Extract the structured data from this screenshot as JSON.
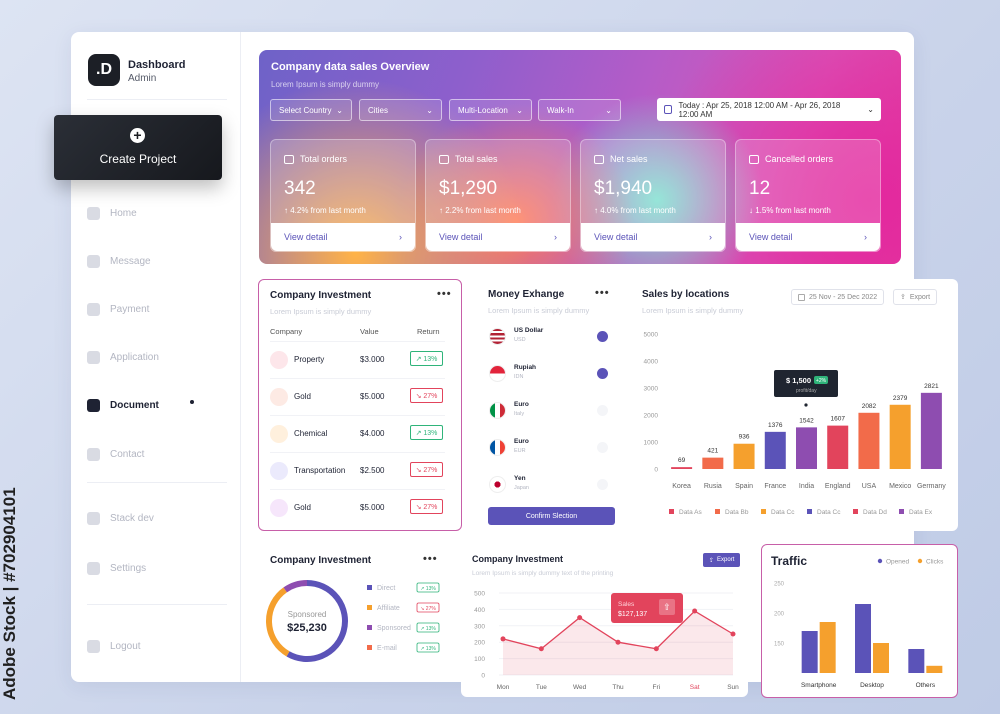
{
  "watermark": {
    "text": "Adobe Stock | #702904101"
  },
  "sidebar": {
    "logo": ".D",
    "title": "Dashboard",
    "subtitle": "Admin",
    "create_label": "Create Project",
    "items": [
      {
        "label": "Home",
        "icon": "home-icon"
      },
      {
        "label": "Message",
        "icon": "message-icon"
      },
      {
        "label": "Payment",
        "icon": "payment-icon"
      },
      {
        "label": "Application",
        "icon": "application-icon"
      },
      {
        "label": "Document",
        "icon": "document-icon",
        "active": true
      },
      {
        "label": "Contact",
        "icon": "contact-icon"
      },
      {
        "label": "Stack dev",
        "icon": "stack-icon"
      },
      {
        "label": "Settings",
        "icon": "settings-icon"
      },
      {
        "label": "Logout",
        "icon": "logout-icon"
      }
    ]
  },
  "hero": {
    "title": "Company data sales Overview",
    "subtitle": "Lorem Ipsum is simply dummy",
    "filters": [
      "Select Country",
      "Cities",
      "Multi-Location",
      "Walk-In"
    ],
    "date_range": "Today : Apr 25, 2018 12:00 AM - Apr 26, 2018 12:00 AM",
    "stats": [
      {
        "label": "Total orders",
        "value": "342",
        "change": "↑ 4.2%  from last month",
        "link": "View detail"
      },
      {
        "label": "Total sales",
        "value": "$1,290",
        "change": "↑ 2.2%  from last month",
        "link": "View detail"
      },
      {
        "label": "Net sales",
        "value": "$1,940",
        "change": "↑ 4.0%  from last month",
        "link": "View detail"
      },
      {
        "label": "Cancelled orders",
        "value": "12",
        "change": "↓ 1.5%  from last month",
        "link": "View detail"
      }
    ]
  },
  "investment": {
    "title": "Company Investment",
    "subtitle": "Lorem Ipsum is simply dummy",
    "menu": "•••",
    "headers": [
      "Company",
      "Value",
      "Return"
    ],
    "rows": [
      {
        "name": "Property",
        "value": "$3.000",
        "ret": "↗ 13%",
        "dir": "up",
        "color": "#fde6ea"
      },
      {
        "name": "Gold",
        "value": "$5.000",
        "ret": "↘ 27%",
        "dir": "down",
        "color": "#fdeae4"
      },
      {
        "name": "Chemical",
        "value": "$4.000",
        "ret": "↗ 13%",
        "dir": "up",
        "color": "#fff0dd"
      },
      {
        "name": "Transportation",
        "value": "$2.500",
        "ret": "↘ 27%",
        "dir": "down",
        "color": "#ebeafc"
      },
      {
        "name": "Gold",
        "value": "$5.000",
        "ret": "↘ 27%",
        "dir": "down",
        "color": "#f6e6fb"
      }
    ]
  },
  "exchange": {
    "title": "Money Exhange",
    "subtitle": "Lorem Ipsum is simply dummy",
    "menu": "•••",
    "rows": [
      {
        "name": "US Dollar",
        "code": "USD",
        "checked": true
      },
      {
        "name": "Rupiah",
        "code": "IDN",
        "checked": true
      },
      {
        "name": "Euro",
        "code": "Italy",
        "checked": false
      },
      {
        "name": "Euro",
        "code": "EUR",
        "checked": false
      },
      {
        "name": "Yen",
        "code": "Japan",
        "checked": false
      }
    ],
    "confirm_label": "Confirm Slection"
  },
  "locations": {
    "title": "Sales by locations",
    "subtitle": "Lorem Ipsum is simply dummy",
    "date_btn": "25 Nov - 25 Dec 2022",
    "export_btn": "Export",
    "tooltip_value": "$ 1,500",
    "tooltip_sub": "profit/day",
    "tooltip_badge": "+2%",
    "legend": [
      "Data As",
      "Data Bb",
      "Data Cc",
      "Data Cc",
      "Data Dd",
      "Data Ex"
    ]
  },
  "chart_data": [
    {
      "type": "bar",
      "title": "Sales by locations",
      "categories": [
        "Korea",
        "Rusia",
        "Spain",
        "France",
        "India",
        "England",
        "USA",
        "Mexico",
        "Germany"
      ],
      "values": [
        69,
        421,
        936,
        1376,
        1542,
        1607,
        2082,
        2379,
        2821
      ],
      "colors": [
        "#e2445c",
        "#f26b4a",
        "#f5a02d",
        "#5b53b8",
        "#8e4db0",
        "#e2445c",
        "#f26b4a",
        "#f5a02d",
        "#8e4db0"
      ],
      "ylim": [
        0,
        5000
      ],
      "yticks": [
        0,
        1000,
        2000,
        3000,
        4000,
        5000
      ]
    },
    {
      "type": "pie",
      "title": "Company Investment",
      "center_label": "Sponsored",
      "center_value": "$25,230",
      "legend": [
        {
          "name": "Direct",
          "color": "#5b53b8",
          "badge": "↗ 13%"
        },
        {
          "name": "Affiliate",
          "color": "#f5a02d",
          "badge": "↘ 27%"
        },
        {
          "name": "Sponsored",
          "color": "#8e4db0",
          "badge": "↗ 13%"
        },
        {
          "name": "E-mail",
          "color": "#f26b4a",
          "badge": "↗ 13%"
        }
      ]
    },
    {
      "type": "line",
      "title": "Company Investment",
      "subtitle": "Lorem Ipsum is simply dummy text of the printing",
      "export": "Export",
      "categories": [
        "Mon",
        "Tue",
        "Wed",
        "Thu",
        "Fri",
        "Sat",
        "Sun"
      ],
      "values": [
        220,
        160,
        350,
        200,
        160,
        390,
        250
      ],
      "ylim": [
        0,
        500
      ],
      "yticks": [
        0,
        100,
        200,
        300,
        400,
        500
      ],
      "tooltip_label": "Sales",
      "tooltip_value": "$127,137"
    },
    {
      "type": "bar",
      "title": "Traffic",
      "categories": [
        "Smartphone",
        "Desktop",
        "Others"
      ],
      "series": [
        {
          "name": "Opened",
          "color": "#5b53b8",
          "values": [
            170,
            215,
            140
          ]
        },
        {
          "name": "Clicks",
          "color": "#f5a02d",
          "values": [
            185,
            150,
            112
          ]
        }
      ],
      "ylim": [
        100,
        250
      ],
      "yticks": [
        150,
        200,
        250
      ]
    }
  ]
}
